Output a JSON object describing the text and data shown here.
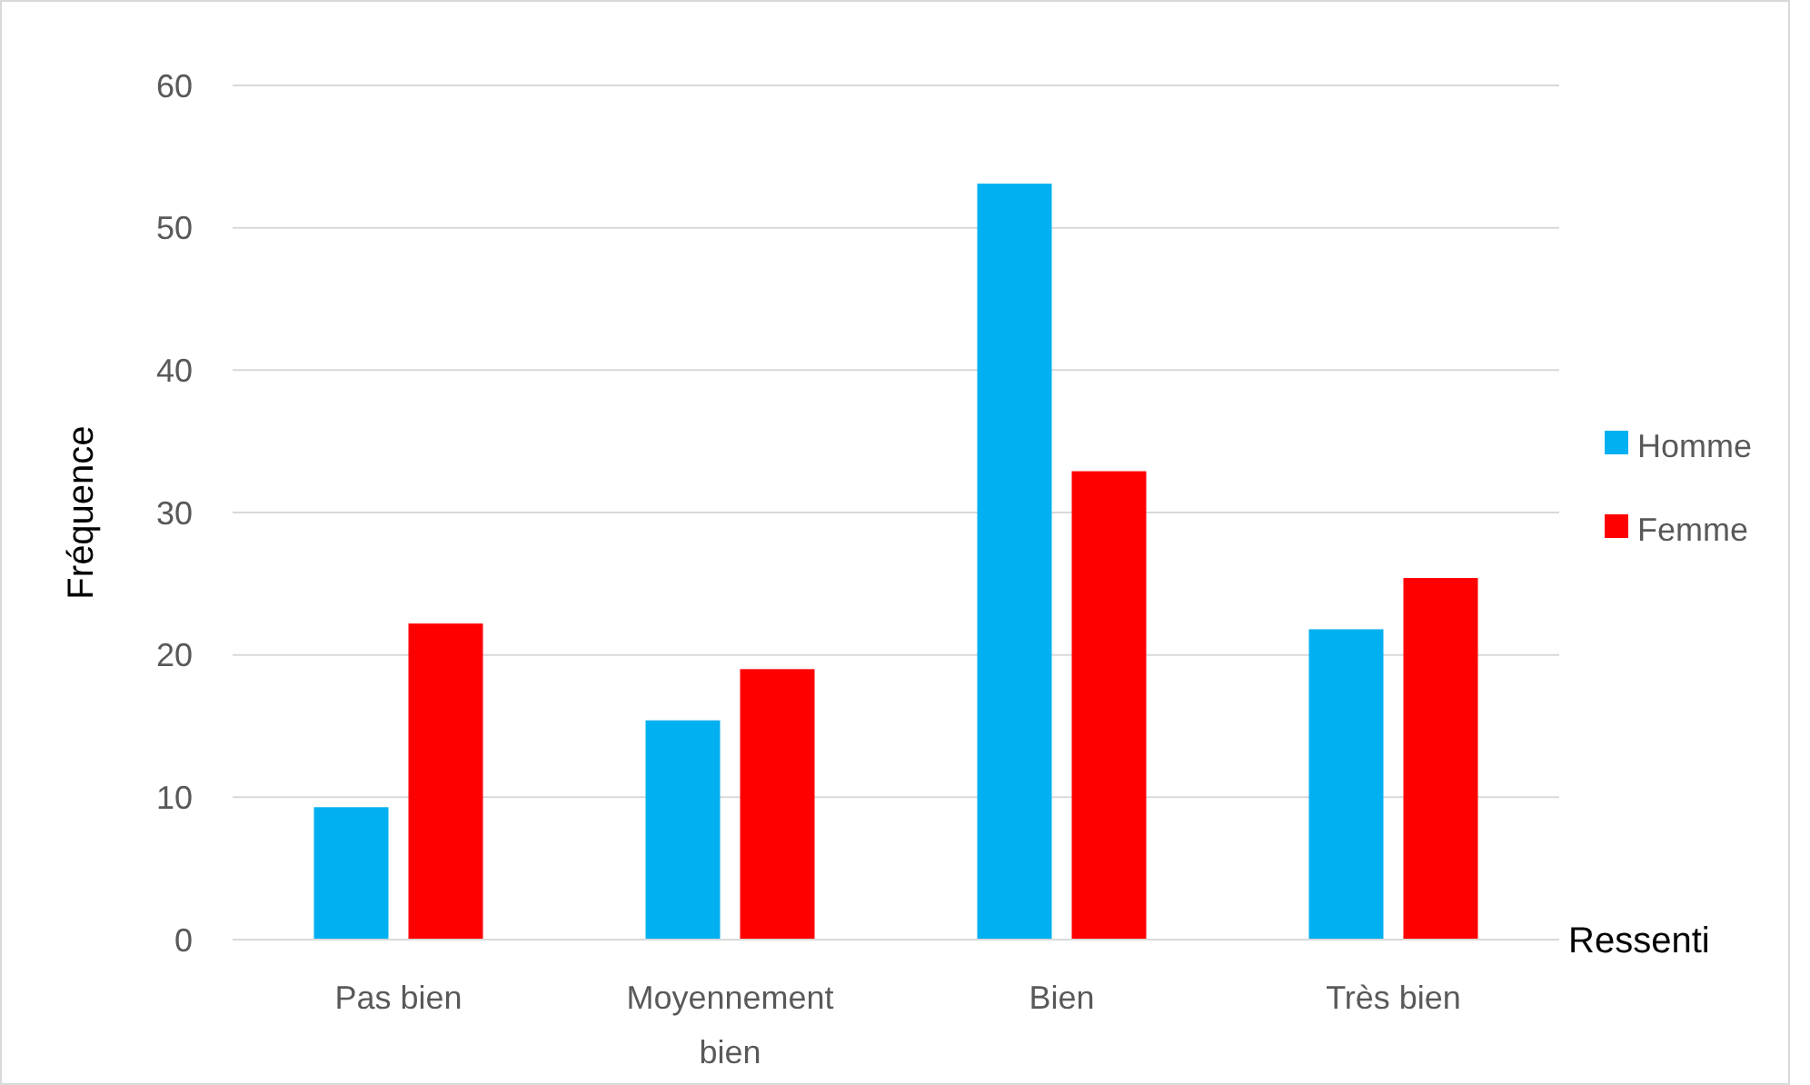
{
  "chart_data": {
    "type": "bar",
    "xlabel": "Ressenti",
    "ylabel": "Fréquence",
    "categories": [
      "Pas bien",
      "Moyennement bien",
      "Bien",
      "Très bien"
    ],
    "series": [
      {
        "name": "Homme",
        "color": "#00b0f0",
        "values": [
          9.3,
          15.4,
          53.1,
          21.8
        ]
      },
      {
        "name": "Femme",
        "color": "#ff0000",
        "values": [
          22.2,
          19.0,
          32.9,
          25.4
        ]
      }
    ],
    "ylim": [
      0,
      60
    ],
    "yticks": [
      0,
      10,
      20,
      30,
      40,
      50,
      60
    ],
    "grid": "y",
    "legend": "right"
  }
}
